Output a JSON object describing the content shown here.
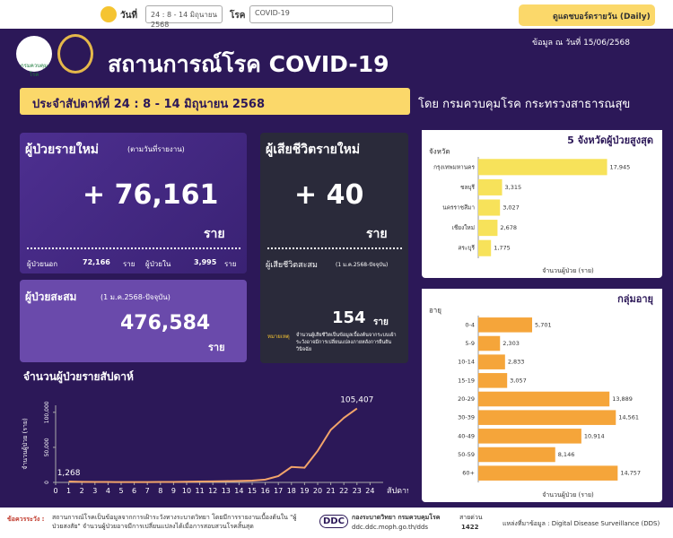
{
  "topbar": {
    "date_label": "วันที่",
    "date_value": "24 : 8 - 14 มิถุนายน 2568",
    "disease_label": "โรค",
    "disease_value": "COVID-19",
    "daily_button": "ดูแดชบอร์ดรายวัน (Daily)"
  },
  "header": {
    "logo_text": "กรมควบคุมโรค",
    "title": "สถานการณ์โรค COVID-19",
    "data_date": "ข้อมูล ณ วันที่ 15/06/2568"
  },
  "banner": {
    "week": "ประจำสัปดาห์ที่   24 : 8 - 14 มิถุนายน 2568",
    "by": "โดย กรมควบคุมโรค  กระทรวงสาธารณสุข"
  },
  "new_cases": {
    "title": "ผู้ป่วยรายใหม่",
    "subtitle": "(ตามวันที่รายงาน)",
    "value": "+ 76,161",
    "unit": "ราย",
    "outpatient_label": "ผู้ป่วยนอก",
    "outpatient_value": "72,166",
    "outpatient_unit": "ราย",
    "inpatient_label": "ผู้ป่วยใน",
    "inpatient_value": "3,995",
    "inpatient_unit": "ราย"
  },
  "cumulative": {
    "title": "ผู้ป่วยสะสม",
    "subtitle": "(1 ม.ค.2568-ปัจจุบัน)",
    "value": "476,584",
    "unit": "ราย"
  },
  "deaths": {
    "title": "ผู้เสียชีวิตรายใหม่",
    "value": "+ 40",
    "unit": "ราย",
    "cumulative_title": "ผู้เสียชีวิตสะสม",
    "cumulative_subtitle": "(1 ม.ค.2568-ปัจจุบัน)",
    "cumulative_value": "154",
    "cumulative_unit": "ราย",
    "note_label": "หมายเหตุ",
    "note": "จำนวนผู้เสียชีวิตเป็นข้อมูลเบื้องต้นจากระบบเฝ้าระวังอาจมีการเปลี่ยนแปลงภายหลังการยืนยันวินิจฉัย"
  },
  "footer": {
    "caution_label": "ข้อควรระวัง :",
    "caution": "สถานการณ์โรคเป็นข้อมูลจากการเฝ้าระวังทางระบาดวิทยา โดยมีการรายงานเบื้องต้นใน \"ผู้ป่วยสงสัย\" จำนวนผู้ป่วยอาจมีการเปลี่ยนแปลงได้เมื่อการสอบสวนโรคสิ้นสุด",
    "logo": "DDC",
    "org": "กองระบาดวิทยา กรมควบคุมโรค",
    "url": "ddc.ddc.moph.go.th/dds",
    "hotline_label": "สายด่วน",
    "hotline": "1422",
    "source": "แหล่งที่มาข้อมูล : Digital Disease Surveillance (DDS)"
  },
  "chart_data": [
    {
      "type": "line",
      "title": "จำนวนผู้ป่วยรายสัปดาห์",
      "y_label": "จำนวนผู้ป่วย (ราย)",
      "x_label": "สัปดาห์",
      "color": "#f2a46a",
      "x": [
        1,
        2,
        3,
        4,
        5,
        6,
        7,
        8,
        9,
        10,
        11,
        12,
        13,
        14,
        15,
        16,
        17,
        18,
        19,
        20,
        21,
        22,
        23
      ],
      "values": [
        1268,
        800,
        700,
        600,
        500,
        500,
        500,
        600,
        700,
        900,
        1200,
        1500,
        1800,
        2000,
        2600,
        4000,
        9000,
        22000,
        21000,
        45000,
        75000,
        92000,
        105407
      ],
      "value_labels": [
        "1,268",
        null,
        null,
        null,
        null,
        null,
        null,
        null,
        null,
        null,
        null,
        null,
        null,
        null,
        null,
        null,
        null,
        null,
        null,
        null,
        null,
        null,
        "105,407"
      ],
      "xlim": [
        0,
        25
      ],
      "xticks": [
        0,
        1,
        2,
        3,
        4,
        5,
        6,
        7,
        8,
        9,
        10,
        11,
        12,
        13,
        14,
        15,
        16,
        17,
        18,
        19,
        20,
        21,
        22,
        23,
        24
      ],
      "ylim": [
        0,
        110000
      ],
      "yticks": [
        0,
        {
          "value": 50000,
          "label": "50,000"
        },
        {
          "value": 100000,
          "label": "100,000"
        }
      ]
    },
    {
      "type": "bar",
      "horizontal": true,
      "title": "5  จังหวัดผู้ป่วยสูงสุด",
      "y_label": "จังหวัด",
      "x_label": "จำนวนผู้ป่วย (ราย)",
      "color": "#f7e25a",
      "categories": [
        "กรุงเทพมหานคร",
        "ชลบุรี",
        "นครราชสีมา",
        "เชียงใหม่",
        "สระบุรี"
      ],
      "values": [
        17945,
        3315,
        3027,
        2678,
        1775
      ],
      "value_labels": [
        "17,945",
        "3,315",
        "3,027",
        "2,678",
        "1,775"
      ],
      "xlim": [
        0,
        25000
      ]
    },
    {
      "type": "bar",
      "horizontal": true,
      "title": "กลุ่มอายุ",
      "y_label": "อายุ",
      "x_label": "จำนวนผู้ป่วย (ราย)",
      "color": "#f5a53a",
      "categories": [
        "0-4",
        "5-9",
        "10-14",
        "15-19",
        "20-29",
        "30-39",
        "40-49",
        "50-59",
        "60+"
      ],
      "values": [
        5701,
        2303,
        2833,
        3057,
        13889,
        14561,
        10914,
        8146,
        14757
      ],
      "value_labels": [
        "5,701",
        "2,303",
        "2,833",
        "3,057",
        "13,889",
        "14,561",
        "10,914",
        "8,146",
        "14,757"
      ],
      "xlim": [
        0,
        19000
      ]
    }
  ]
}
